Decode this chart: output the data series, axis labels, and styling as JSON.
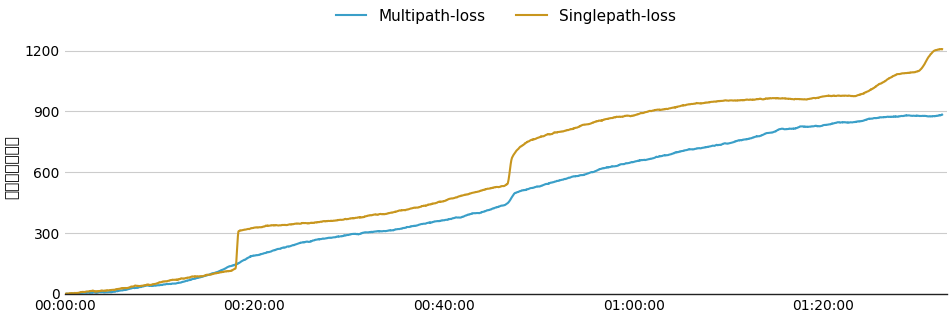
{
  "title": "",
  "ylabel": "パケットロス数",
  "ylim": [
    0,
    1250
  ],
  "yticks": [
    0,
    300,
    600,
    900,
    1200
  ],
  "xlim_seconds": [
    0,
    5580
  ],
  "xtick_seconds": [
    0,
    1200,
    2400,
    3600,
    4800
  ],
  "xtick_labels": [
    "00:00:00",
    "00:20:00",
    "00:40:00",
    "01:00:00",
    "01:20:00"
  ],
  "multipath_color": "#3a9fc8",
  "singlepath_color": "#c8961e",
  "line_width": 1.5,
  "legend_labels": [
    "Multipath-loss",
    "Singlepath-loss"
  ],
  "background_color": "#ffffff",
  "grid_color": "#cccccc",
  "multipath_keypoints": [
    [
      0,
      0
    ],
    [
      600,
      50
    ],
    [
      1080,
      150
    ],
    [
      1200,
      200
    ],
    [
      2400,
      360
    ],
    [
      2700,
      410
    ],
    [
      2800,
      430
    ],
    [
      2850,
      480
    ],
    [
      3000,
      510
    ],
    [
      3600,
      620
    ],
    [
      4200,
      720
    ],
    [
      4500,
      770
    ],
    [
      4700,
      790
    ],
    [
      5400,
      850
    ],
    [
      5550,
      860
    ]
  ],
  "singlepath_keypoints": [
    [
      0,
      0
    ],
    [
      600,
      50
    ],
    [
      1000,
      100
    ],
    [
      1080,
      120
    ],
    [
      1100,
      305
    ],
    [
      1500,
      340
    ],
    [
      2000,
      370
    ],
    [
      2400,
      430
    ],
    [
      2550,
      460
    ],
    [
      2700,
      490
    ],
    [
      2800,
      510
    ],
    [
      2830,
      640
    ],
    [
      2900,
      700
    ],
    [
      2950,
      720
    ],
    [
      3600,
      840
    ],
    [
      4200,
      900
    ],
    [
      4500,
      920
    ],
    [
      4800,
      930
    ],
    [
      5000,
      940
    ],
    [
      5100,
      970
    ],
    [
      5300,
      1050
    ],
    [
      5400,
      1060
    ],
    [
      5500,
      1150
    ],
    [
      5550,
      1160
    ]
  ]
}
